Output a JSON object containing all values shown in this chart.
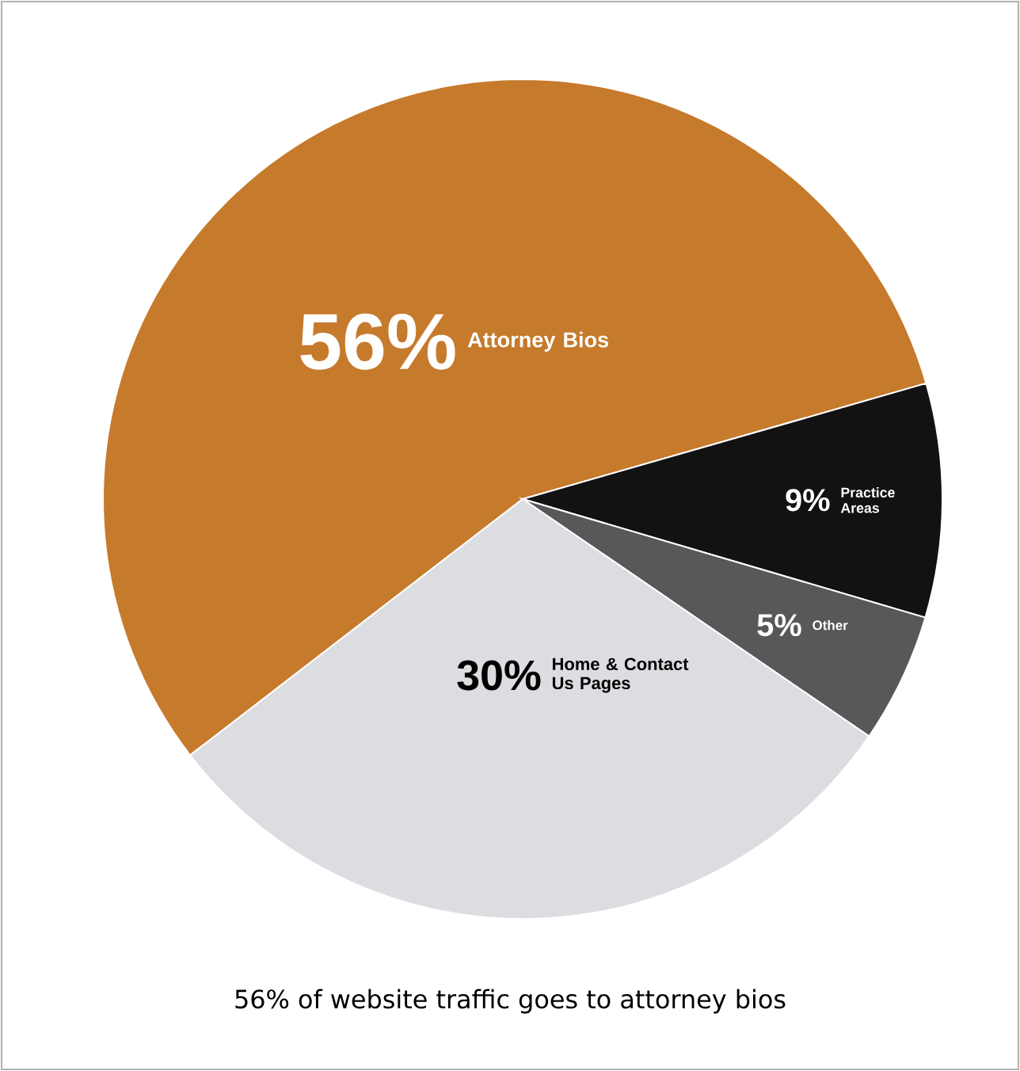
{
  "chart_data": {
    "type": "pie",
    "categories": [
      "Attorney Bios",
      "Practice Areas",
      "Other",
      "Home & Contact Us Pages"
    ],
    "values": [
      56,
      9,
      5,
      30
    ],
    "value_labels": [
      "56%",
      "9%",
      "5%",
      "30%"
    ],
    "colors": [
      "#c67a2c",
      "#121212",
      "#58585b",
      "#dcdde0"
    ],
    "annotations": [
      "56% of website traffic goes to attorney bios"
    ]
  }
}
